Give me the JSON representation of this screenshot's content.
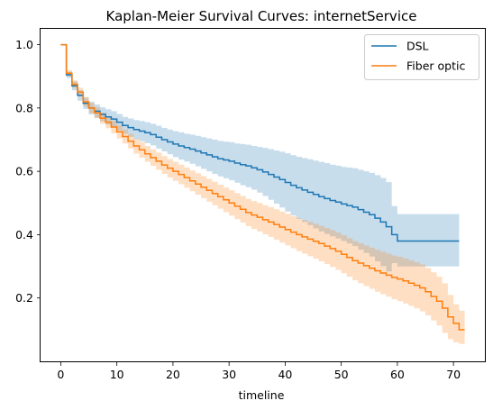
{
  "chart_data": {
    "type": "line",
    "title": "Kaplan-Meier Survival Curves: internetService",
    "xlabel": "timeline",
    "ylabel": "",
    "xlim": [
      -3.6,
      75.6
    ],
    "ylim": [
      0.0,
      1.05
    ],
    "x_ticks": [
      0,
      10,
      20,
      30,
      40,
      50,
      60,
      70
    ],
    "y_ticks": [
      0.2,
      0.4,
      0.6,
      0.8,
      1.0
    ],
    "x_tick_labels": [
      "0",
      "10",
      "20",
      "30",
      "40",
      "50",
      "60",
      "70"
    ],
    "y_tick_labels": [
      "0.2",
      "0.4",
      "0.6",
      "0.8",
      "1.0"
    ],
    "grid": false,
    "legend_position": "top-right",
    "step": true,
    "series": [
      {
        "name": "DSL",
        "color": "#1f77b4",
        "x": [
          0,
          1,
          2,
          3,
          4,
          5,
          6,
          7,
          8,
          9,
          10,
          11,
          12,
          13,
          14,
          15,
          16,
          17,
          18,
          19,
          20,
          21,
          22,
          23,
          24,
          25,
          26,
          27,
          28,
          29,
          30,
          31,
          32,
          33,
          34,
          35,
          36,
          37,
          38,
          39,
          40,
          41,
          42,
          43,
          44,
          45,
          46,
          47,
          48,
          49,
          50,
          51,
          52,
          53,
          54,
          55,
          56,
          57,
          58,
          59,
          60,
          61,
          62,
          63,
          64,
          65,
          66,
          67,
          68,
          69,
          70,
          71
        ],
        "y": [
          1.0,
          0.905,
          0.87,
          0.84,
          0.815,
          0.8,
          0.79,
          0.78,
          0.772,
          0.765,
          0.755,
          0.745,
          0.738,
          0.732,
          0.727,
          0.722,
          0.716,
          0.708,
          0.7,
          0.693,
          0.686,
          0.68,
          0.675,
          0.67,
          0.664,
          0.658,
          0.652,
          0.646,
          0.64,
          0.636,
          0.632,
          0.626,
          0.621,
          0.617,
          0.611,
          0.605,
          0.598,
          0.59,
          0.582,
          0.574,
          0.565,
          0.556,
          0.548,
          0.541,
          0.534,
          0.527,
          0.52,
          0.514,
          0.508,
          0.503,
          0.497,
          0.492,
          0.487,
          0.479,
          0.471,
          0.463,
          0.452,
          0.44,
          0.425,
          0.4,
          0.38,
          0.38,
          0.38,
          0.38,
          0.38,
          0.38,
          0.38,
          0.38,
          0.38,
          0.38,
          0.38,
          0.38
        ],
        "ci_lower": [
          1.0,
          0.895,
          0.856,
          0.823,
          0.797,
          0.78,
          0.769,
          0.758,
          0.748,
          0.74,
          0.729,
          0.718,
          0.709,
          0.702,
          0.695,
          0.689,
          0.682,
          0.672,
          0.663,
          0.654,
          0.645,
          0.637,
          0.631,
          0.624,
          0.616,
          0.608,
          0.6,
          0.592,
          0.584,
          0.578,
          0.572,
          0.564,
          0.556,
          0.55,
          0.542,
          0.533,
          0.522,
          0.51,
          0.498,
          0.486,
          0.473,
          0.461,
          0.45,
          0.44,
          0.43,
          0.42,
          0.41,
          0.402,
          0.395,
          0.388,
          0.38,
          0.372,
          0.364,
          0.353,
          0.342,
          0.331,
          0.316,
          0.301,
          0.284,
          0.31,
          0.3,
          0.3,
          0.3,
          0.3,
          0.3,
          0.3,
          0.3,
          0.3,
          0.3,
          0.3,
          0.3,
          0.3
        ],
        "ci_upper": [
          1.0,
          0.915,
          0.884,
          0.857,
          0.833,
          0.82,
          0.811,
          0.802,
          0.796,
          0.79,
          0.781,
          0.772,
          0.767,
          0.762,
          0.759,
          0.755,
          0.75,
          0.744,
          0.737,
          0.732,
          0.727,
          0.723,
          0.719,
          0.716,
          0.712,
          0.708,
          0.704,
          0.7,
          0.696,
          0.694,
          0.692,
          0.688,
          0.686,
          0.684,
          0.68,
          0.677,
          0.674,
          0.67,
          0.666,
          0.662,
          0.657,
          0.651,
          0.646,
          0.642,
          0.638,
          0.634,
          0.63,
          0.626,
          0.621,
          0.618,
          0.614,
          0.612,
          0.61,
          0.605,
          0.6,
          0.595,
          0.588,
          0.579,
          0.566,
          0.49,
          0.465,
          0.465,
          0.465,
          0.465,
          0.465,
          0.465,
          0.465,
          0.465,
          0.465,
          0.465,
          0.465,
          0.465
        ],
        "end_x": 71
      },
      {
        "name": "Fiber optic",
        "color": "#ff7f0e",
        "x": [
          0,
          1,
          2,
          3,
          4,
          5,
          6,
          7,
          8,
          9,
          10,
          11,
          12,
          13,
          14,
          15,
          16,
          17,
          18,
          19,
          20,
          21,
          22,
          23,
          24,
          25,
          26,
          27,
          28,
          29,
          30,
          31,
          32,
          33,
          34,
          35,
          36,
          37,
          38,
          39,
          40,
          41,
          42,
          43,
          44,
          45,
          46,
          47,
          48,
          49,
          50,
          51,
          52,
          53,
          54,
          55,
          56,
          57,
          58,
          59,
          60,
          61,
          62,
          63,
          64,
          65,
          66,
          67,
          68,
          69,
          70,
          71,
          72
        ],
        "y": [
          1.0,
          0.91,
          0.875,
          0.85,
          0.82,
          0.8,
          0.785,
          0.768,
          0.755,
          0.74,
          0.725,
          0.71,
          0.695,
          0.68,
          0.668,
          0.655,
          0.643,
          0.632,
          0.62,
          0.61,
          0.6,
          0.59,
          0.58,
          0.57,
          0.56,
          0.55,
          0.54,
          0.53,
          0.52,
          0.51,
          0.5,
          0.49,
          0.48,
          0.47,
          0.462,
          0.455,
          0.447,
          0.44,
          0.432,
          0.424,
          0.416,
          0.408,
          0.4,
          0.393,
          0.386,
          0.379,
          0.372,
          0.364,
          0.356,
          0.348,
          0.338,
          0.328,
          0.318,
          0.31,
          0.302,
          0.294,
          0.286,
          0.279,
          0.272,
          0.265,
          0.26,
          0.254,
          0.247,
          0.24,
          0.232,
          0.22,
          0.205,
          0.19,
          0.168,
          0.14,
          0.12,
          0.1,
          0.1
        ],
        "ci_lower": [
          1.0,
          0.9,
          0.863,
          0.836,
          0.805,
          0.784,
          0.768,
          0.75,
          0.736,
          0.72,
          0.704,
          0.688,
          0.672,
          0.656,
          0.643,
          0.63,
          0.617,
          0.605,
          0.592,
          0.581,
          0.57,
          0.559,
          0.548,
          0.537,
          0.526,
          0.515,
          0.504,
          0.493,
          0.482,
          0.471,
          0.46,
          0.449,
          0.438,
          0.427,
          0.418,
          0.41,
          0.401,
          0.393,
          0.384,
          0.375,
          0.366,
          0.357,
          0.348,
          0.34,
          0.332,
          0.324,
          0.316,
          0.307,
          0.298,
          0.289,
          0.278,
          0.267,
          0.256,
          0.247,
          0.238,
          0.229,
          0.22,
          0.212,
          0.204,
          0.196,
          0.19,
          0.183,
          0.175,
          0.167,
          0.158,
          0.145,
          0.129,
          0.113,
          0.09,
          0.07,
          0.06,
          0.055,
          0.055
        ],
        "ci_upper": [
          1.0,
          0.92,
          0.887,
          0.864,
          0.835,
          0.816,
          0.802,
          0.786,
          0.774,
          0.76,
          0.746,
          0.732,
          0.718,
          0.704,
          0.693,
          0.68,
          0.669,
          0.659,
          0.648,
          0.639,
          0.63,
          0.621,
          0.612,
          0.603,
          0.594,
          0.585,
          0.576,
          0.567,
          0.558,
          0.549,
          0.54,
          0.531,
          0.522,
          0.513,
          0.506,
          0.5,
          0.493,
          0.487,
          0.48,
          0.473,
          0.466,
          0.459,
          0.452,
          0.446,
          0.44,
          0.434,
          0.428,
          0.421,
          0.414,
          0.407,
          0.398,
          0.389,
          0.38,
          0.373,
          0.366,
          0.359,
          0.352,
          0.346,
          0.34,
          0.334,
          0.33,
          0.325,
          0.319,
          0.313,
          0.306,
          0.295,
          0.281,
          0.267,
          0.246,
          0.21,
          0.18,
          0.16,
          0.16
        ],
        "end_x": 72
      }
    ]
  }
}
